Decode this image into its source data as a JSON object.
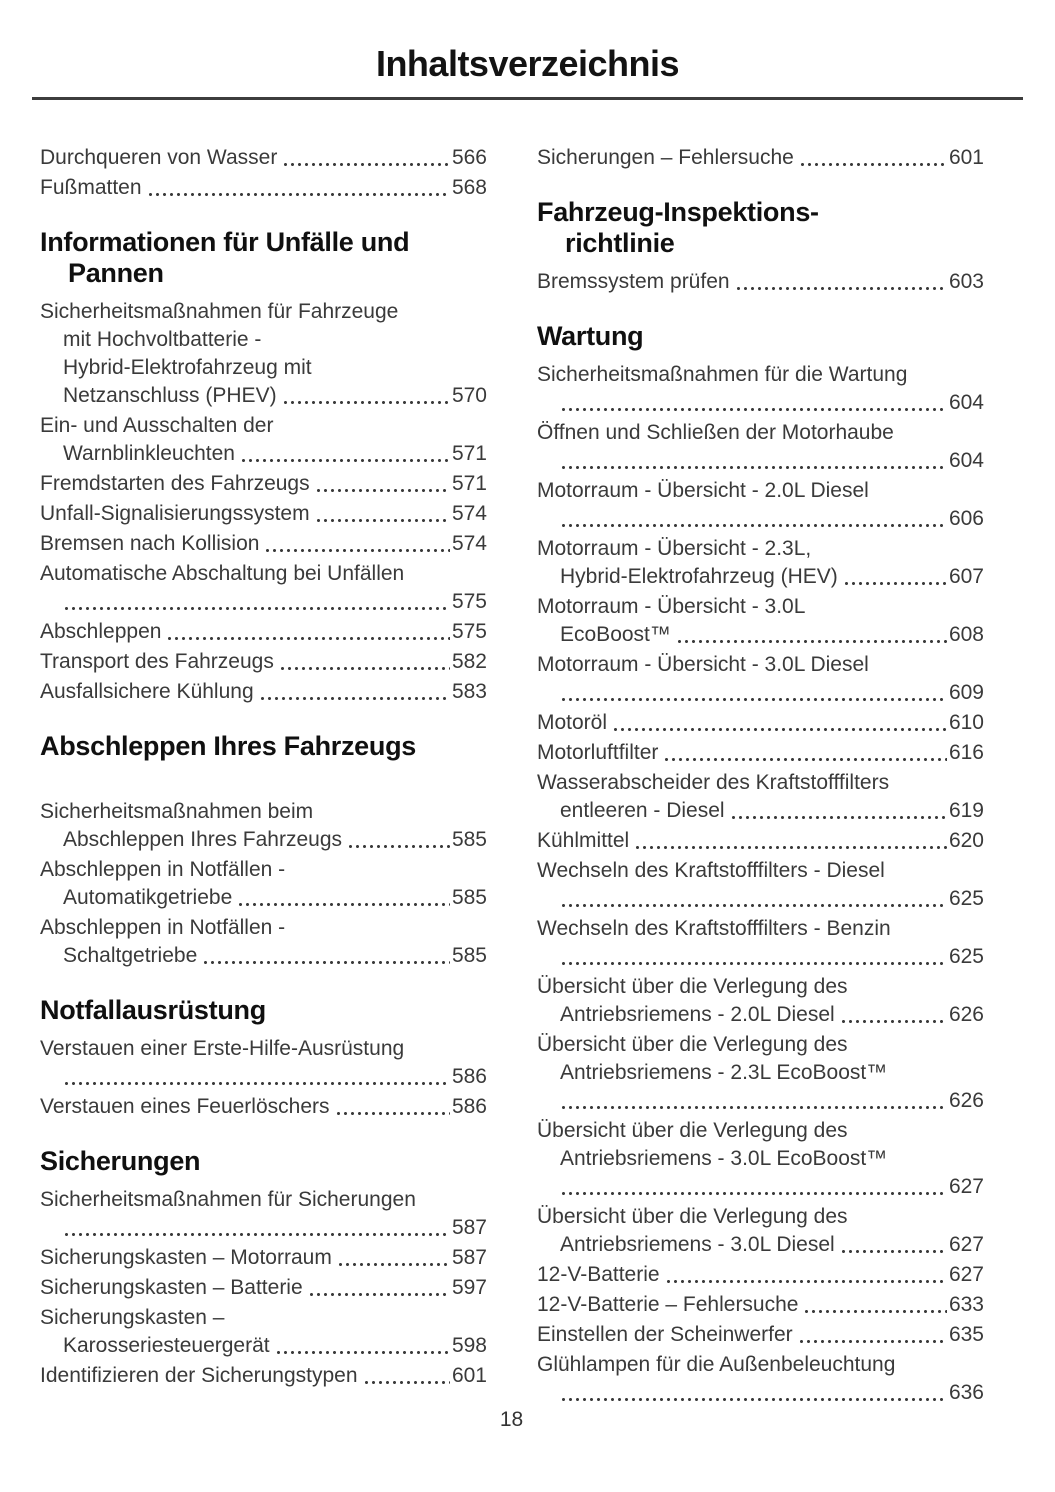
{
  "page": {
    "title": "Inhaltsverzeichnis",
    "number": "18"
  },
  "toc": {
    "columns": [
      [
        {
          "t": [],
          "last": "Durchqueren von Wasser",
          "page": "566"
        },
        {
          "t": [],
          "last": "Fußmatten",
          "page": "568"
        },
        {
          "h": [
            "Informationen für Unfälle und",
            "Pannen"
          ]
        },
        {
          "t": [
            "Sicherheitsmaßnahmen für Fahrzeuge",
            "mit Hochvoltbatterie -",
            "Hybrid-Elektrofahrzeug mit"
          ],
          "last": "Netzanschluss (PHEV)",
          "page": "570"
        },
        {
          "t": [
            "Ein- und Ausschalten der"
          ],
          "last": "Warnblinkleuchten",
          "page": "571"
        },
        {
          "t": [],
          "last": "Fremdstarten des Fahrzeugs",
          "page": "571"
        },
        {
          "t": [],
          "last": "Unfall-Signalisierungssystem",
          "page": "574"
        },
        {
          "t": [],
          "last": "Bremsen nach Kollision",
          "page": "574"
        },
        {
          "t": [
            "Automatische Abschaltung bei Unfällen"
          ],
          "last": "",
          "page": "575"
        },
        {
          "t": [],
          "last": "Abschleppen",
          "page": "575"
        },
        {
          "t": [],
          "last": "Transport des Fahrzeugs",
          "page": "582"
        },
        {
          "t": [],
          "last": "Ausfallsichere Kühlung",
          "page": "583"
        },
        {
          "h": [
            "Abschleppen Ihres Fahrzeugs"
          ],
          "extraGap": true
        },
        {
          "t": [
            "Sicherheitsmaßnahmen beim"
          ],
          "last": "Abschleppen Ihres Fahrzeugs",
          "page": "585"
        },
        {
          "t": [
            "Abschleppen in Notfällen -"
          ],
          "last": "Automatikgetriebe",
          "page": "585"
        },
        {
          "t": [
            "Abschleppen in Notfällen -"
          ],
          "last": "Schaltgetriebe",
          "page": "585"
        },
        {
          "h": [
            "Notfallausrüstung"
          ]
        },
        {
          "t": [
            "Verstauen einer Erste-Hilfe-Ausrüstung"
          ],
          "last": "",
          "page": "586"
        },
        {
          "t": [],
          "last": "Verstauen eines Feuerlöschers",
          "page": "586"
        },
        {
          "h": [
            "Sicherungen"
          ]
        },
        {
          "t": [
            "Sicherheitsmaßnahmen für Sicherungen"
          ],
          "last": "",
          "page": "587"
        },
        {
          "t": [],
          "last": "Sicherungskasten – Motorraum",
          "page": "587"
        },
        {
          "t": [],
          "last": "Sicherungskasten – Batterie",
          "page": "597"
        },
        {
          "t": [
            "Sicherungskasten –"
          ],
          "last": "Karosseriesteuergerät",
          "page": "598"
        },
        {
          "t": [],
          "last": "Identifizieren der Sicherungstypen",
          "page": "601"
        }
      ],
      [
        {
          "t": [],
          "last": "Sicherungen – Fehlersuche",
          "page": "601"
        },
        {
          "h": [
            "Fahrzeug-Inspektions-",
            "richtlinie"
          ]
        },
        {
          "t": [],
          "last": "Bremssystem prüfen",
          "page": "603"
        },
        {
          "h": [
            "Wartung"
          ]
        },
        {
          "t": [
            "Sicherheitsmaßnahmen für die Wartung"
          ],
          "last": "",
          "page": "604"
        },
        {
          "t": [
            "Öffnen und Schließen der Motorhaube"
          ],
          "last": "",
          "page": "604"
        },
        {
          "t": [
            "Motorraum - Übersicht - 2.0L Diesel"
          ],
          "last": "",
          "page": "606"
        },
        {
          "t": [
            "Motorraum - Übersicht - 2.3L,"
          ],
          "last": "Hybrid-Elektrofahrzeug (HEV)",
          "page": "607"
        },
        {
          "t": [
            "Motorraum - Übersicht - 3.0L"
          ],
          "last": "EcoBoost™",
          "page": "608"
        },
        {
          "t": [
            "Motorraum - Übersicht - 3.0L Diesel"
          ],
          "last": "",
          "page": "609"
        },
        {
          "t": [],
          "last": "Motoröl",
          "page": "610"
        },
        {
          "t": [],
          "last": "Motorluftfilter",
          "page": "616"
        },
        {
          "t": [
            "Wasserabscheider des Kraftstofffilters"
          ],
          "last": "entleeren - Diesel",
          "page": "619"
        },
        {
          "t": [],
          "last": "Kühlmittel",
          "page": "620"
        },
        {
          "t": [
            "Wechseln des Kraftstofffilters - Diesel"
          ],
          "last": "",
          "page": "625"
        },
        {
          "t": [
            "Wechseln des Kraftstofffilters - Benzin"
          ],
          "last": "",
          "page": "625"
        },
        {
          "t": [
            "Übersicht über die Verlegung des"
          ],
          "last": "Antriebsriemens - 2.0L Diesel",
          "page": "626"
        },
        {
          "t": [
            "Übersicht über die Verlegung des",
            "Antriebsriemens - 2.3L EcoBoost™"
          ],
          "last": "",
          "page": "626"
        },
        {
          "t": [
            "Übersicht über die Verlegung des",
            "Antriebsriemens - 3.0L EcoBoost™"
          ],
          "last": "",
          "page": "627"
        },
        {
          "t": [
            "Übersicht über die Verlegung des"
          ],
          "last": "Antriebsriemens - 3.0L Diesel",
          "page": "627"
        },
        {
          "t": [],
          "last": "12-V-Batterie",
          "page": "627"
        },
        {
          "t": [],
          "last": "12-V-Batterie – Fehlersuche",
          "page": "633"
        },
        {
          "t": [],
          "last": "Einstellen der Scheinwerfer",
          "page": "635"
        },
        {
          "t": [
            "Glühlampen für die Außenbeleuchtung"
          ],
          "last": "",
          "page": "636"
        }
      ]
    ]
  }
}
